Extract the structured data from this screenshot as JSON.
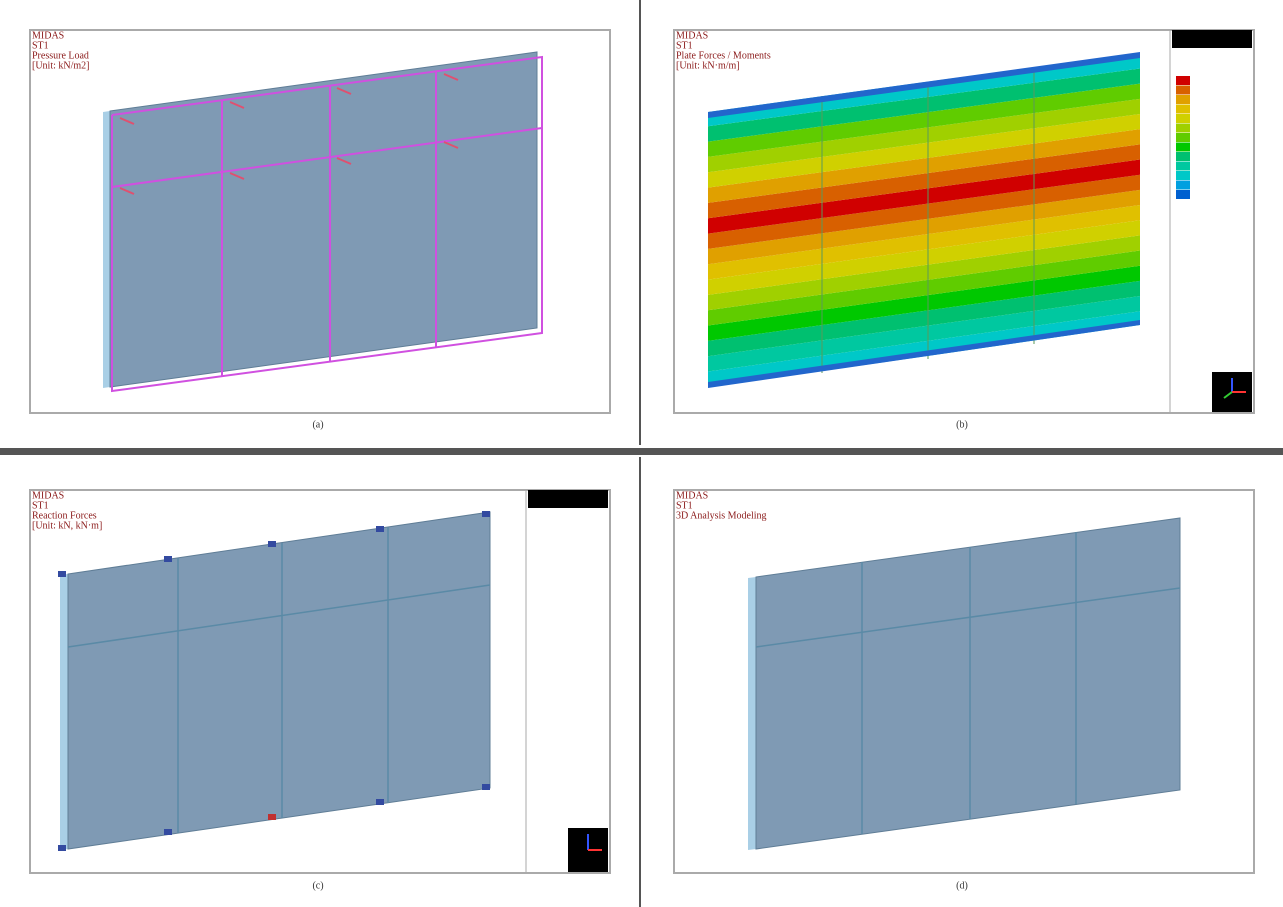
{
  "panels": [
    {
      "lines": [
        "MIDAS",
        "ST1",
        "Pressure Load",
        "[Unit: kN/m2]"
      ],
      "caption": "(a)"
    },
    {
      "lines": [
        "MIDAS",
        "ST1",
        "Plate Forces / Moments",
        "[Unit: kN·m/m]"
      ],
      "caption": "(b)"
    },
    {
      "lines": [
        "MIDAS",
        "ST1",
        "Reaction Forces",
        "[Unit: kN, kN·m]"
      ],
      "caption": "(c)"
    },
    {
      "lines": [
        "MIDAS",
        "ST1",
        "3D Analysis Modeling"
      ],
      "caption": "(d)"
    }
  ]
}
